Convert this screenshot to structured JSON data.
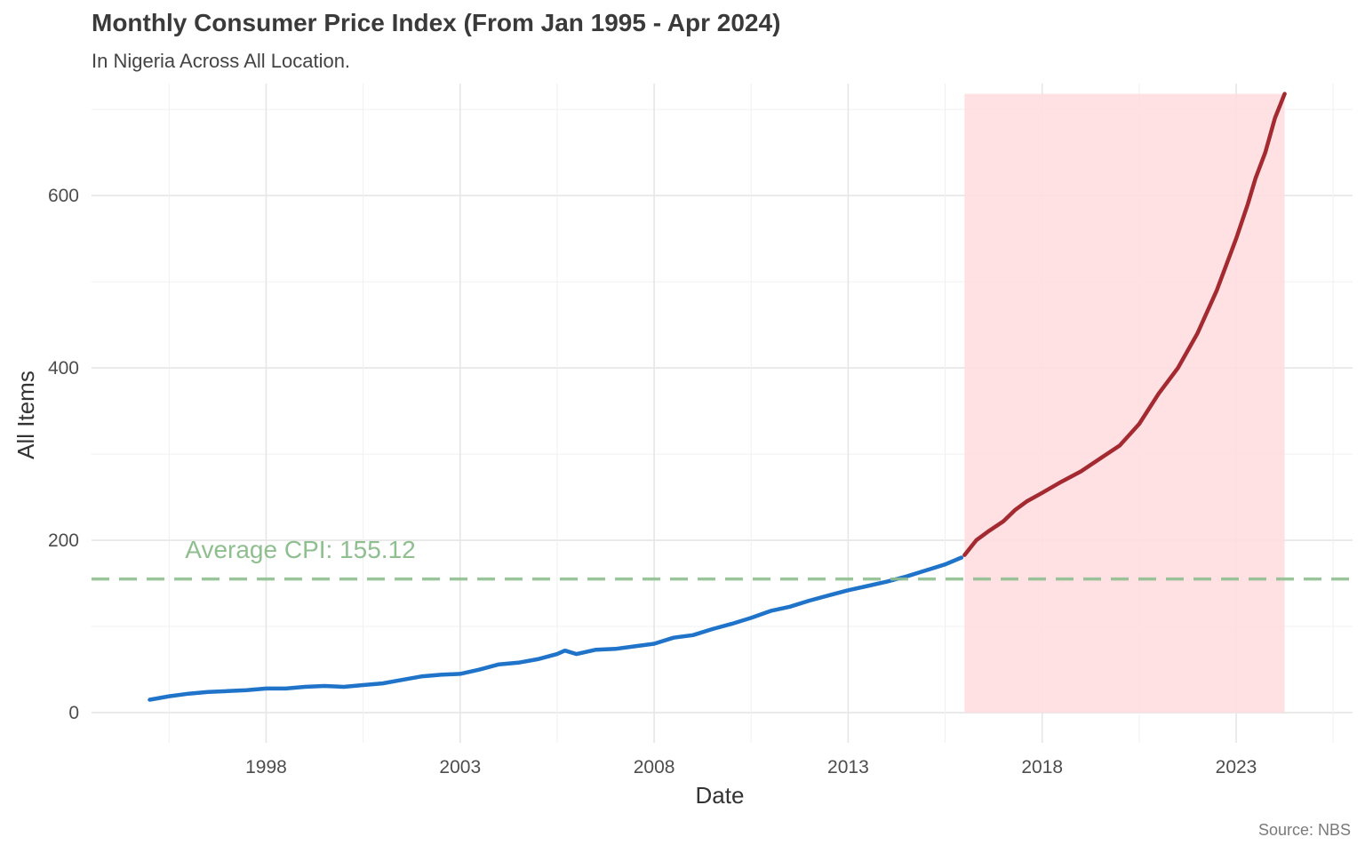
{
  "chart_data": {
    "type": "line",
    "title": "Monthly Consumer Price Index (From Jan 1995 - Apr 2024)",
    "subtitle": "In Nigeria Across All Location.",
    "caption": "Source: NBS",
    "xlabel": "Date",
    "ylabel": "All Items",
    "x_ticks": [
      "1998",
      "2003",
      "2008",
      "2013",
      "2018",
      "2023"
    ],
    "y_ticks": [
      0,
      200,
      400,
      600
    ],
    "xlim": [
      1993.5,
      2026.0
    ],
    "ylim": [
      -35,
      730
    ],
    "grid": true,
    "highlight_region": {
      "x_start": 2016.0,
      "x_end": 2024.25,
      "color": "#ffdde0"
    },
    "average_line": {
      "value": 155.12,
      "label": "Average CPI: 155.12",
      "color": "#8fbf8f"
    },
    "series": [
      {
        "color": "#1f73c9",
        "x": [
          1995.0,
          1995.5,
          1996.0,
          1996.5,
          1997.0,
          1997.5,
          1998.0,
          1998.5,
          1999.0,
          1999.5,
          2000.0,
          2000.5,
          2001.0,
          2001.5,
          2002.0,
          2002.5,
          2003.0,
          2003.5,
          2004.0,
          2004.5,
          2005.0,
          2005.5,
          2005.7,
          2006.0,
          2006.5,
          2007.0,
          2007.5,
          2008.0,
          2008.5,
          2009.0,
          2009.5,
          2010.0,
          2010.5,
          2011.0,
          2011.5,
          2012.0,
          2012.5,
          2013.0,
          2013.5,
          2014.0,
          2014.5,
          2015.0,
          2015.5,
          2015.92
        ],
        "y": [
          15,
          19,
          22,
          24,
          25,
          26,
          28,
          28,
          30,
          31,
          30,
          32,
          34,
          38,
          42,
          44,
          45,
          50,
          56,
          58,
          62,
          68,
          72,
          68,
          73,
          74,
          77,
          80,
          87,
          90,
          97,
          103,
          110,
          118,
          123,
          130,
          136,
          142,
          147,
          152,
          158,
          165,
          172,
          180
        ]
      },
      {
        "color": "#a32a30",
        "x": [
          2016.0,
          2016.3,
          2016.6,
          2017.0,
          2017.3,
          2017.6,
          2018.0,
          2018.5,
          2019.0,
          2019.5,
          2020.0,
          2020.5,
          2021.0,
          2021.5,
          2022.0,
          2022.5,
          2023.0,
          2023.3,
          2023.5,
          2023.75,
          2024.0,
          2024.25
        ],
        "y": [
          183,
          200,
          210,
          222,
          235,
          245,
          255,
          268,
          280,
          295,
          310,
          335,
          370,
          400,
          440,
          490,
          550,
          590,
          620,
          650,
          690,
          718
        ]
      }
    ]
  }
}
